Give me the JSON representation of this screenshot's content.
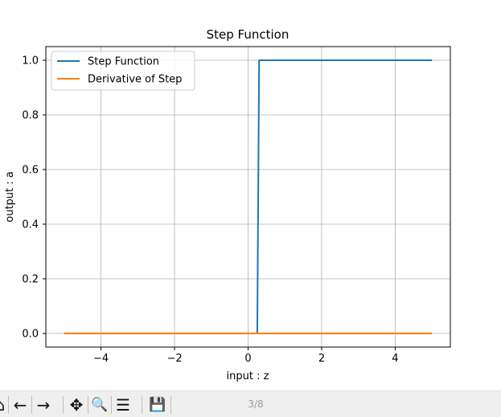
{
  "chart_data": {
    "type": "line",
    "title": "Step Function",
    "xlabel": "input : z",
    "ylabel": "output : a",
    "xlim": [
      -5.5,
      5.5
    ],
    "ylim": [
      -0.05,
      1.05
    ],
    "xticks": [
      -4,
      -2,
      0,
      2,
      4
    ],
    "xtick_labels": [
      "−4",
      "−2",
      "0",
      "2",
      "4"
    ],
    "yticks": [
      0.0,
      0.2,
      0.4,
      0.6,
      0.8,
      1.0
    ],
    "ytick_labels": [
      "0.0",
      "0.2",
      "0.4",
      "0.6",
      "0.8",
      "1.0"
    ],
    "grid": true,
    "legend_position": "top-left",
    "series": [
      {
        "name": "Step Function",
        "color": "#1f77b4",
        "x": [
          -5.0,
          0.25,
          0.3,
          5.0
        ],
        "y": [
          0.0,
          0.0,
          1.0,
          1.0
        ]
      },
      {
        "name": "Derivative of Step",
        "color": "#ff7f0e",
        "x": [
          -5.0,
          5.0
        ],
        "y": [
          0.0,
          0.0
        ]
      }
    ]
  },
  "toolbar": {
    "page_indicator": "3/8",
    "buttons": [
      {
        "name": "home-button",
        "glyph": "⌂"
      },
      {
        "name": "back-button",
        "glyph": "←"
      },
      {
        "name": "forward-button",
        "glyph": "→"
      },
      {
        "name": "pan-button",
        "glyph": "✥"
      },
      {
        "name": "zoom-button",
        "glyph": "🔍"
      },
      {
        "name": "configure-subplots-button",
        "glyph": "☰"
      },
      {
        "name": "save-button",
        "glyph": "💾"
      }
    ]
  }
}
